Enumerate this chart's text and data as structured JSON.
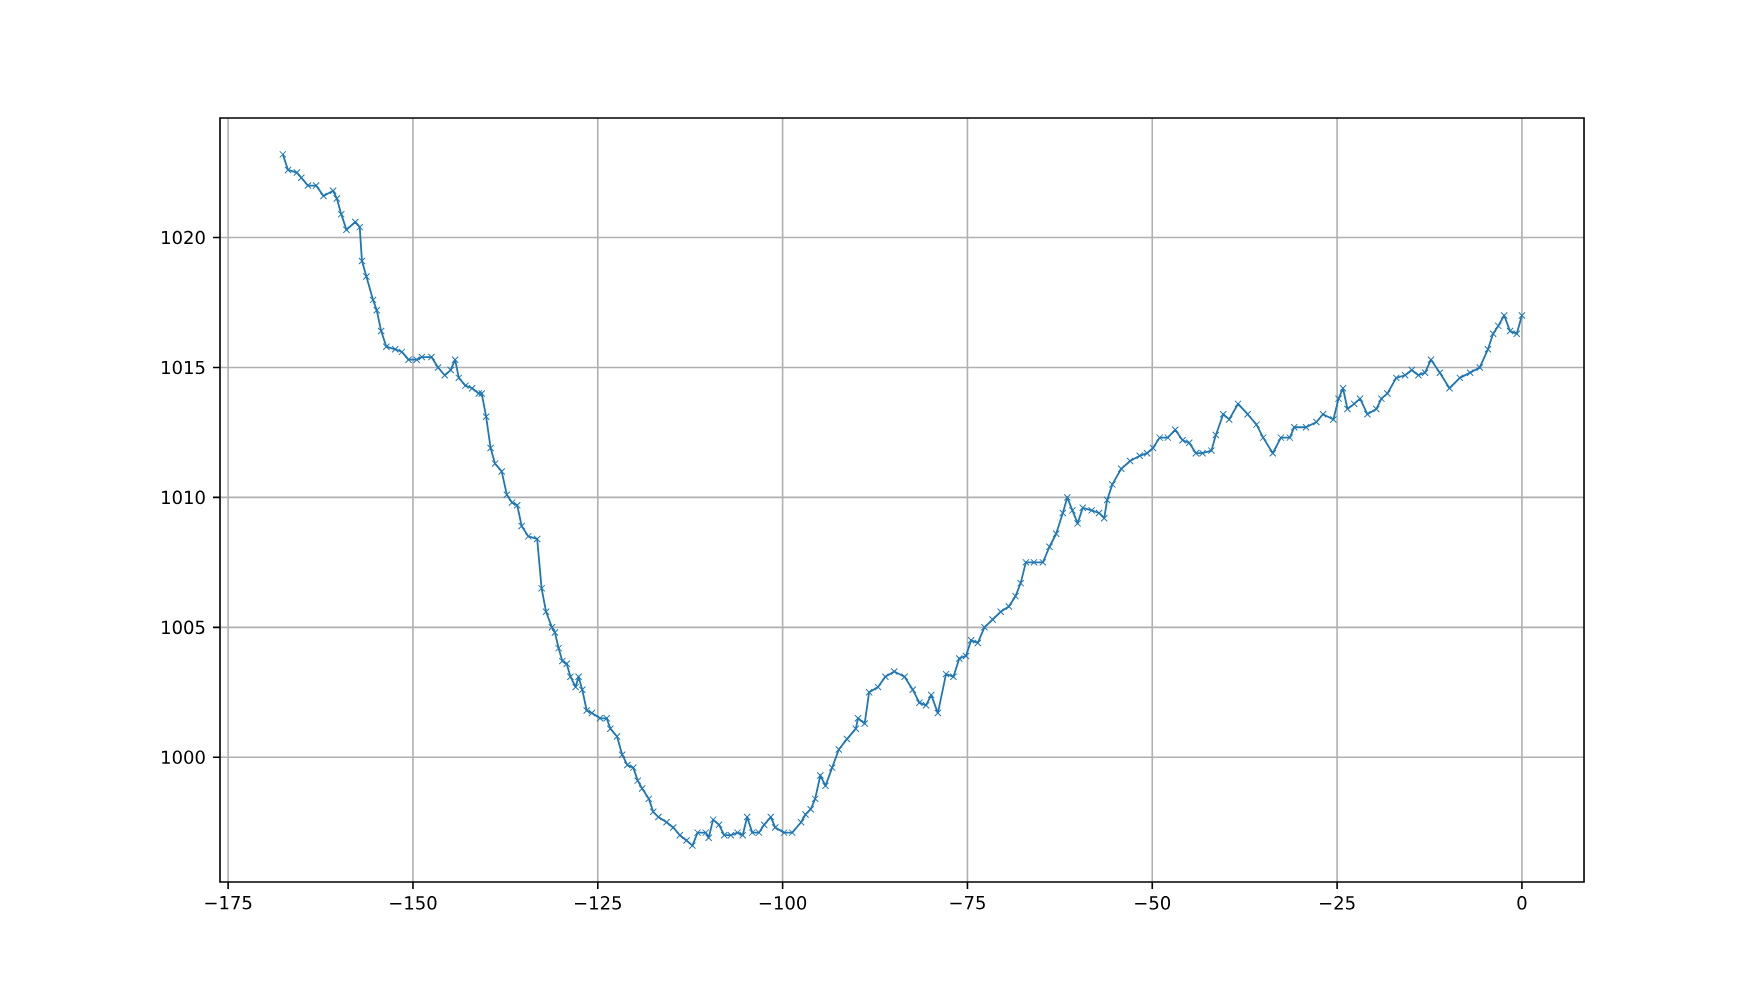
{
  "chart_data": {
    "type": "line",
    "color": "#1f77b4",
    "marker": "cross",
    "line_style": "solid",
    "grid": true,
    "xlim": [
      -176.1,
      8.4
    ],
    "ylim": [
      995.2,
      1024.6
    ],
    "xticks": [
      {
        "value": -175,
        "label": "−175"
      },
      {
        "value": -150,
        "label": "−150"
      },
      {
        "value": -125,
        "label": "−125"
      },
      {
        "value": -100,
        "label": "−100"
      },
      {
        "value": -75,
        "label": "−75"
      },
      {
        "value": -50,
        "label": "−50"
      },
      {
        "value": -25,
        "label": "−25"
      },
      0
    ],
    "yticks": [
      1000,
      1005,
      1010,
      1015,
      1020
    ],
    "x": [
      -167.6,
      -166.9,
      -165.7,
      -165.1,
      -164.2,
      -163.1,
      -162.1,
      -160.8,
      -160.3,
      -159.7,
      -159.0,
      -157.8,
      -157.2,
      -156.9,
      -156.3,
      -155.4,
      -154.9,
      -154.3,
      -153.6,
      -152.4,
      -151.5,
      -150.6,
      -149.5,
      -148.8,
      -147.5,
      -146.6,
      -145.7,
      -144.9,
      -144.3,
      -143.8,
      -142.9,
      -142.0,
      -141.1,
      -140.7,
      -140.1,
      -139.5,
      -138.9,
      -138.0,
      -137.3,
      -136.6,
      -135.9,
      -135.3,
      -134.4,
      -133.2,
      -132.6,
      -132.0,
      -131.2,
      -130.8,
      -130.3,
      -129.8,
      -129.2,
      -128.7,
      -128.0,
      -127.6,
      -127.1,
      -126.5,
      -125.8,
      -124.7,
      -123.8,
      -123.3,
      -122.4,
      -121.7,
      -121.0,
      -120.2,
      -119.6,
      -119.0,
      -118.1,
      -117.5,
      -116.8,
      -115.7,
      -114.8,
      -113.9,
      -113.0,
      -112.2,
      -111.5,
      -110.4,
      -110.0,
      -109.4,
      -108.6,
      -107.9,
      -107.0,
      -106.1,
      -105.4,
      -104.8,
      -104.1,
      -103.2,
      -102.5,
      -101.6,
      -101.0,
      -99.8,
      -98.7,
      -97.5,
      -96.9,
      -96.2,
      -95.6,
      -94.9,
      -94.2,
      -93.3,
      -92.4,
      -91.3,
      -90.1,
      -89.8,
      -88.9,
      -88.3,
      -87.1,
      -86.1,
      -84.9,
      -83.5,
      -82.4,
      -81.5,
      -80.6,
      -79.9,
      -79.0,
      -77.9,
      -76.9,
      -76.1,
      -75.2,
      -74.5,
      -73.6,
      -72.7,
      -71.6,
      -70.5,
      -69.4,
      -68.5,
      -67.8,
      -67.1,
      -66.0,
      -64.8,
      -63.9,
      -63.0,
      -62.1,
      -61.5,
      -60.8,
      -60.1,
      -59.4,
      -58.2,
      -57.2,
      -56.5,
      -56.1,
      -55.4,
      -54.2,
      -53.0,
      -51.7,
      -50.7,
      -49.9,
      -49.0,
      -47.9,
      -46.9,
      -45.9,
      -45.0,
      -44.1,
      -43.2,
      -42.0,
      -41.4,
      -40.4,
      -39.6,
      -38.4,
      -37.1,
      -35.9,
      -35.0,
      -33.7,
      -32.6,
      -31.4,
      -30.8,
      -29.2,
      -27.8,
      -26.9,
      -25.5,
      -24.8,
      -24.2,
      -23.6,
      -22.7,
      -21.9,
      -20.9,
      -19.7,
      -19.0,
      -18.2,
      -17.0,
      -15.8,
      -14.9,
      -14.0,
      -13.1,
      -12.3,
      -11.1,
      -9.8,
      -8.4,
      -7.0,
      -5.7,
      -4.6,
      -3.9,
      -3.2,
      -2.4,
      -1.6,
      -0.7,
      0.0
    ],
    "values": [
      1023.2,
      1022.6,
      1022.5,
      1022.3,
      1022.0,
      1022.0,
      1021.6,
      1021.8,
      1021.5,
      1020.9,
      1020.3,
      1020.6,
      1020.4,
      1019.1,
      1018.5,
      1017.6,
      1017.2,
      1016.4,
      1015.8,
      1015.7,
      1015.6,
      1015.3,
      1015.3,
      1015.4,
      1015.4,
      1015.0,
      1014.7,
      1014.9,
      1015.3,
      1014.6,
      1014.3,
      1014.2,
      1014.0,
      1014.0,
      1013.1,
      1011.9,
      1011.3,
      1011.0,
      1010.1,
      1009.8,
      1009.7,
      1008.9,
      1008.5,
      1008.4,
      1006.5,
      1005.6,
      1005.0,
      1004.8,
      1004.2,
      1003.7,
      1003.6,
      1003.1,
      1002.7,
      1003.1,
      1002.6,
      1001.8,
      1001.7,
      1001.5,
      1001.5,
      1001.1,
      1000.8,
      1000.1,
      999.7,
      999.6,
      999.1,
      998.8,
      998.4,
      997.9,
      997.7,
      997.5,
      997.3,
      997.0,
      996.8,
      996.6,
      997.1,
      997.1,
      996.9,
      997.6,
      997.4,
      997.0,
      997.0,
      997.1,
      997.0,
      997.7,
      997.1,
      997.1,
      997.4,
      997.7,
      997.3,
      997.1,
      997.1,
      997.5,
      997.8,
      998.0,
      998.4,
      999.3,
      998.9,
      999.6,
      1000.3,
      1000.7,
      1001.1,
      1001.5,
      1001.3,
      1002.5,
      1002.7,
      1003.1,
      1003.3,
      1003.1,
      1002.6,
      1002.1,
      1002.0,
      1002.4,
      1001.7,
      1003.2,
      1003.1,
      1003.8,
      1003.9,
      1004.5,
      1004.4,
      1005.0,
      1005.3,
      1005.6,
      1005.8,
      1006.2,
      1006.7,
      1007.5,
      1007.5,
      1007.5,
      1008.1,
      1008.6,
      1009.4,
      1010.0,
      1009.5,
      1009.0,
      1009.6,
      1009.5,
      1009.4,
      1009.2,
      1009.9,
      1010.5,
      1011.1,
      1011.4,
      1011.6,
      1011.7,
      1011.9,
      1012.3,
      1012.3,
      1012.6,
      1012.2,
      1012.1,
      1011.7,
      1011.7,
      1011.8,
      1012.4,
      1013.2,
      1013.0,
      1013.6,
      1013.2,
      1012.8,
      1012.3,
      1011.7,
      1012.3,
      1012.3,
      1012.7,
      1012.7,
      1012.9,
      1013.2,
      1013.0,
      1013.8,
      1014.2,
      1013.4,
      1013.6,
      1013.8,
      1013.2,
      1013.4,
      1013.8,
      1014.0,
      1014.6,
      1014.7,
      1014.9,
      1014.7,
      1014.8,
      1015.3,
      1014.8,
      1014.2,
      1014.6,
      1014.8,
      1015.0,
      1015.7,
      1016.3,
      1016.6,
      1017.0,
      1016.4,
      1016.3,
      1017.0
    ]
  }
}
